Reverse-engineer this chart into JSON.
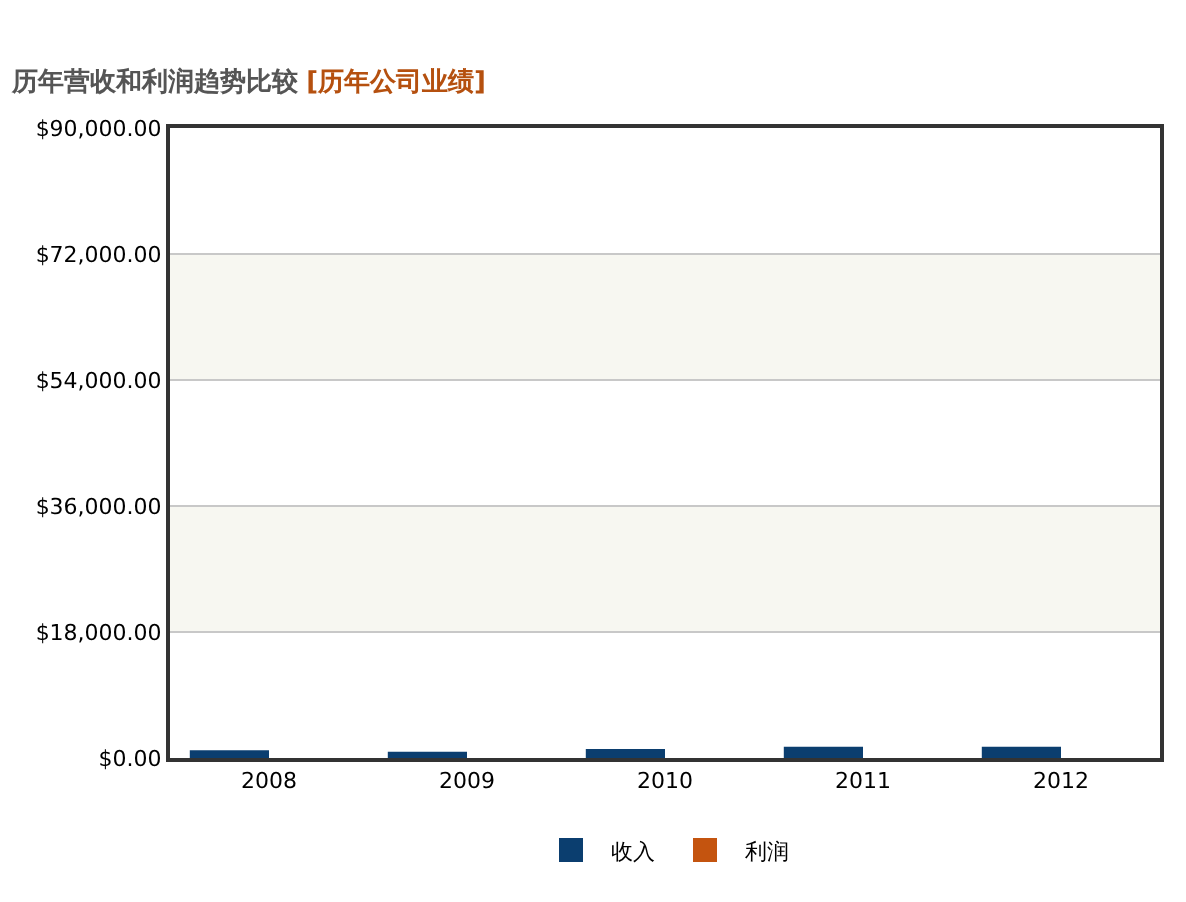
{
  "chart_data": {
    "type": "bar",
    "title": "历年营收和利润趋势比较",
    "subtitle": "[历年公司业绩]",
    "categories": [
      "2008",
      "2009",
      "2010",
      "2011",
      "2012"
    ],
    "series": [
      {
        "name": "收入",
        "color": "#0b3e6f",
        "values": [
          1100,
          900,
          1300,
          1600,
          1600
        ]
      },
      {
        "name": "利润",
        "color": "#c4540f",
        "values": [
          0,
          0,
          0,
          0,
          0
        ]
      }
    ],
    "ylim": [
      0,
      90000
    ],
    "yticks": [
      {
        "value": 0,
        "label": "$0.00"
      },
      {
        "value": 18000,
        "label": "$18,000.00"
      },
      {
        "value": 36000,
        "label": "$36,000.00"
      },
      {
        "value": 54000,
        "label": "$54,000.00"
      },
      {
        "value": 72000,
        "label": "$72,000.00"
      },
      {
        "value": 90000,
        "label": "$90,000.00"
      }
    ],
    "bands": [
      {
        "axis": "y",
        "from": 18000,
        "to": 36000,
        "color": "#f7f7f1"
      },
      {
        "axis": "y",
        "from": 54000,
        "to": 72000,
        "color": "#f7f7f1"
      }
    ],
    "grid": "y",
    "legend": "bottom"
  }
}
